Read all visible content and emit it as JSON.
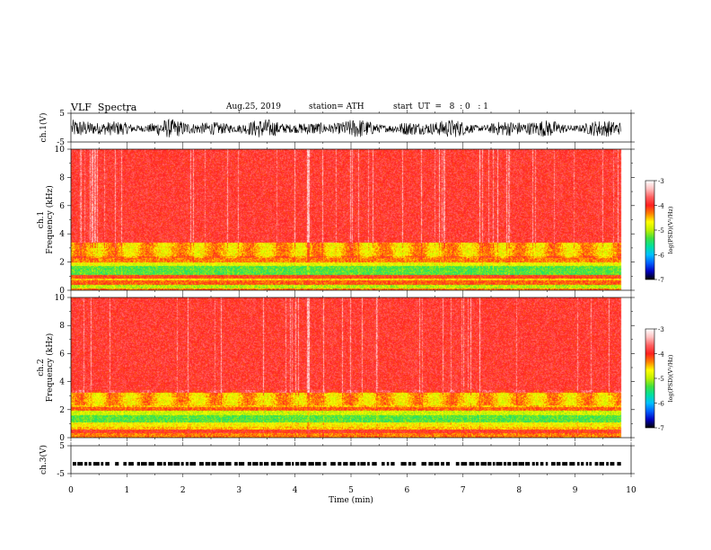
{
  "header": {
    "title": "VLF  Spectra",
    "date": "Aug.25, 2019",
    "station": "station= ATH",
    "start_ut": "start  UT  =   8  : 0   : 1"
  },
  "chart_data": [
    {
      "type": "line",
      "name": "ch1-waveform",
      "ylabel": "ch.1(V)",
      "ylim": [
        -5,
        5
      ],
      "yticks": [
        "5",
        "-5"
      ],
      "xlim": [
        0,
        10
      ],
      "x_data_end": 9.82,
      "signal": "broadband noise, approx. -3 to +3 V"
    },
    {
      "type": "heatmap",
      "name": "ch1-spectrogram",
      "ylabel": [
        "ch.1",
        "Frequency  (kHz)"
      ],
      "ylim": [
        0,
        10
      ],
      "yticks": [
        "0",
        "2",
        "4",
        "6",
        "8",
        "10"
      ],
      "xlim": [
        0,
        10
      ],
      "x_data_end": 9.82,
      "colorbar": {
        "label": "log(PSD)(V²/Hz)",
        "range": [
          -7,
          -3
        ],
        "ticks": [
          "-3",
          "-4",
          "-5",
          "-6",
          "-7"
        ],
        "colors": [
          "#000000",
          "#0000c0",
          "#0060ff",
          "#00c0ff",
          "#00e0a0",
          "#40e040",
          "#c0f000",
          "#ffff00",
          "#ff8000",
          "#ff2020",
          "#ff6060",
          "#ffc0c0",
          "#ffffff"
        ]
      },
      "bands": [
        {
          "from_khz": 0.0,
          "to_khz": 0.15,
          "level": -4.3
        },
        {
          "from_khz": 0.15,
          "to_khz": 0.4,
          "level": -5.0
        },
        {
          "from_khz": 0.4,
          "to_khz": 0.7,
          "level": -4.2
        },
        {
          "from_khz": 0.7,
          "to_khz": 0.85,
          "level": -4.6
        },
        {
          "from_khz": 0.85,
          "to_khz": 1.1,
          "level": -4.1
        },
        {
          "from_khz": 1.1,
          "to_khz": 1.7,
          "level": -5.3
        },
        {
          "from_khz": 1.7,
          "to_khz": 2.0,
          "level": -4.8
        },
        {
          "from_khz": 2.0,
          "to_khz": 2.4,
          "level": -4.3
        },
        {
          "from_khz": 2.4,
          "to_khz": 3.4,
          "level": -4.5
        },
        {
          "from_khz": 3.4,
          "to_khz": 10.0,
          "level": -3.9
        }
      ]
    },
    {
      "type": "heatmap",
      "name": "ch2-spectrogram",
      "ylabel": [
        "ch.2",
        "Frequency  (kHz)"
      ],
      "ylim": [
        0,
        10
      ],
      "yticks": [
        "0",
        "2",
        "4",
        "6",
        "8",
        "10"
      ],
      "xlim": [
        0,
        10
      ],
      "x_data_end": 9.82,
      "colorbar": {
        "label": "log(PSD)(V²/Hz)",
        "range": [
          -7,
          -3
        ],
        "ticks": [
          "-3",
          "-4",
          "-5",
          "-6",
          "-7"
        ],
        "colors": [
          "#000000",
          "#0000c0",
          "#0060ff",
          "#00c0ff",
          "#00e0a0",
          "#40e040",
          "#c0f000",
          "#ffff00",
          "#ff8000",
          "#ff2020",
          "#ff6060",
          "#ffc0c0",
          "#ffffff"
        ]
      },
      "bands": [
        {
          "from_khz": 0.0,
          "to_khz": 0.3,
          "level": -4.3
        },
        {
          "from_khz": 0.3,
          "to_khz": 0.6,
          "level": -4.0
        },
        {
          "from_khz": 0.6,
          "to_khz": 0.8,
          "level": -4.5
        },
        {
          "from_khz": 0.8,
          "to_khz": 1.1,
          "level": -4.7
        },
        {
          "from_khz": 1.1,
          "to_khz": 1.6,
          "level": -5.3
        },
        {
          "from_khz": 1.6,
          "to_khz": 1.9,
          "level": -4.9
        },
        {
          "from_khz": 1.9,
          "to_khz": 2.2,
          "level": -4.2
        },
        {
          "from_khz": 2.2,
          "to_khz": 3.2,
          "level": -4.5
        },
        {
          "from_khz": 3.2,
          "to_khz": 10.0,
          "level": -3.9
        }
      ]
    },
    {
      "type": "line",
      "name": "ch3-waveform",
      "ylabel": "ch.3(V)",
      "ylim": [
        -5,
        5
      ],
      "yticks": [
        "5",
        "-5"
      ],
      "xlim": [
        0,
        10
      ],
      "x_data_end": 9.82,
      "signal": "dashed pulse train near -1.5 V",
      "baseline_v": -1.5
    }
  ],
  "x_axis": {
    "label": "Time  (min)",
    "ticks": [
      "0",
      "1",
      "2",
      "3",
      "4",
      "5",
      "6",
      "7",
      "8",
      "9",
      "10"
    ],
    "range": [
      0,
      10
    ]
  }
}
